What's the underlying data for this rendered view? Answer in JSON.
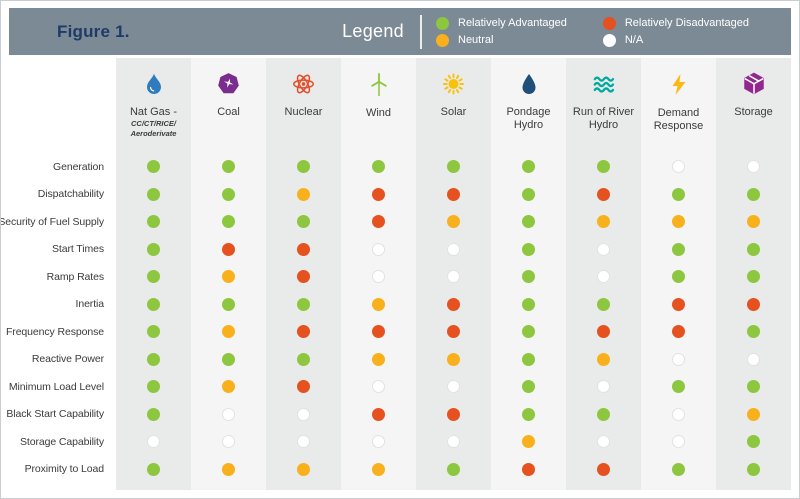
{
  "figure": {
    "title": "Figure 1."
  },
  "legend": {
    "title": "Legend",
    "items": [
      {
        "key": "adv",
        "label": "Relatively Advantaged",
        "color": "#8DC63F"
      },
      {
        "key": "neu",
        "label": "Neutral",
        "color": "#F8B11C"
      },
      {
        "key": "dis",
        "label": "Relatively Disadvantaged",
        "color": "#E5511F"
      },
      {
        "key": "na",
        "label": "N/A",
        "color": "#FFFFFF"
      }
    ]
  },
  "palette": {
    "header_bg": "#7C8A96",
    "title_color": "#1E3A68",
    "stripe_dark": "#E9EAEA",
    "stripe_light": "#F5F5F5"
  },
  "chart_data": {
    "type": "heatmap",
    "title": "Figure 1.",
    "legend_position": "top",
    "value_legend": {
      "adv": "Relatively Advantaged",
      "neu": "Neutral",
      "dis": "Relatively Disadvantaged",
      "na": "N/A"
    },
    "columns": [
      {
        "name": "Nat Gas -",
        "subtitle": "CC/CT/RICE/ Aeroderivate",
        "icon": "gas-flame-icon"
      },
      {
        "name": "Coal",
        "icon": "coal-icon"
      },
      {
        "name": "Nuclear",
        "icon": "atom-icon"
      },
      {
        "name": "Wind",
        "icon": "wind-turbine-icon"
      },
      {
        "name": "Solar",
        "icon": "sun-icon"
      },
      {
        "name": "Pondage Hydro",
        "icon": "water-droplet-icon"
      },
      {
        "name": "Run of River Hydro",
        "icon": "waves-icon"
      },
      {
        "name": "Demand Response",
        "icon": "lightning-bolt-icon"
      },
      {
        "name": "Storage",
        "icon": "storage-cube-icon"
      }
    ],
    "rows": [
      "Generation",
      "Dispatchability",
      "Security of Fuel Supply",
      "Start Times",
      "Ramp Rates",
      "Inertia",
      "Frequency Response",
      "Reactive Power",
      "Minimum Load Level",
      "Black Start Capability",
      "Storage Capability",
      "Proximity to Load"
    ],
    "values": [
      [
        "adv",
        "adv",
        "adv",
        "adv",
        "adv",
        "adv",
        "adv",
        "na",
        "na"
      ],
      [
        "adv",
        "adv",
        "neu",
        "dis",
        "dis",
        "adv",
        "dis",
        "adv",
        "adv"
      ],
      [
        "adv",
        "adv",
        "adv",
        "dis",
        "neu",
        "adv",
        "neu",
        "neu",
        "neu"
      ],
      [
        "adv",
        "dis",
        "dis",
        "na",
        "na",
        "adv",
        "na",
        "adv",
        "adv"
      ],
      [
        "adv",
        "neu",
        "dis",
        "na",
        "na",
        "adv",
        "na",
        "adv",
        "adv"
      ],
      [
        "adv",
        "adv",
        "adv",
        "neu",
        "dis",
        "adv",
        "adv",
        "dis",
        "dis"
      ],
      [
        "adv",
        "neu",
        "dis",
        "dis",
        "dis",
        "adv",
        "dis",
        "dis",
        "adv"
      ],
      [
        "adv",
        "adv",
        "adv",
        "neu",
        "neu",
        "adv",
        "neu",
        "na",
        "na"
      ],
      [
        "adv",
        "neu",
        "dis",
        "na",
        "na",
        "adv",
        "na",
        "adv",
        "adv"
      ],
      [
        "adv",
        "na",
        "na",
        "dis",
        "dis",
        "adv",
        "adv",
        "na",
        "neu"
      ],
      [
        "na",
        "na",
        "na",
        "na",
        "na",
        "neu",
        "na",
        "na",
        "adv"
      ],
      [
        "adv",
        "neu",
        "neu",
        "neu",
        "adv",
        "dis",
        "dis",
        "adv",
        "adv"
      ]
    ]
  }
}
